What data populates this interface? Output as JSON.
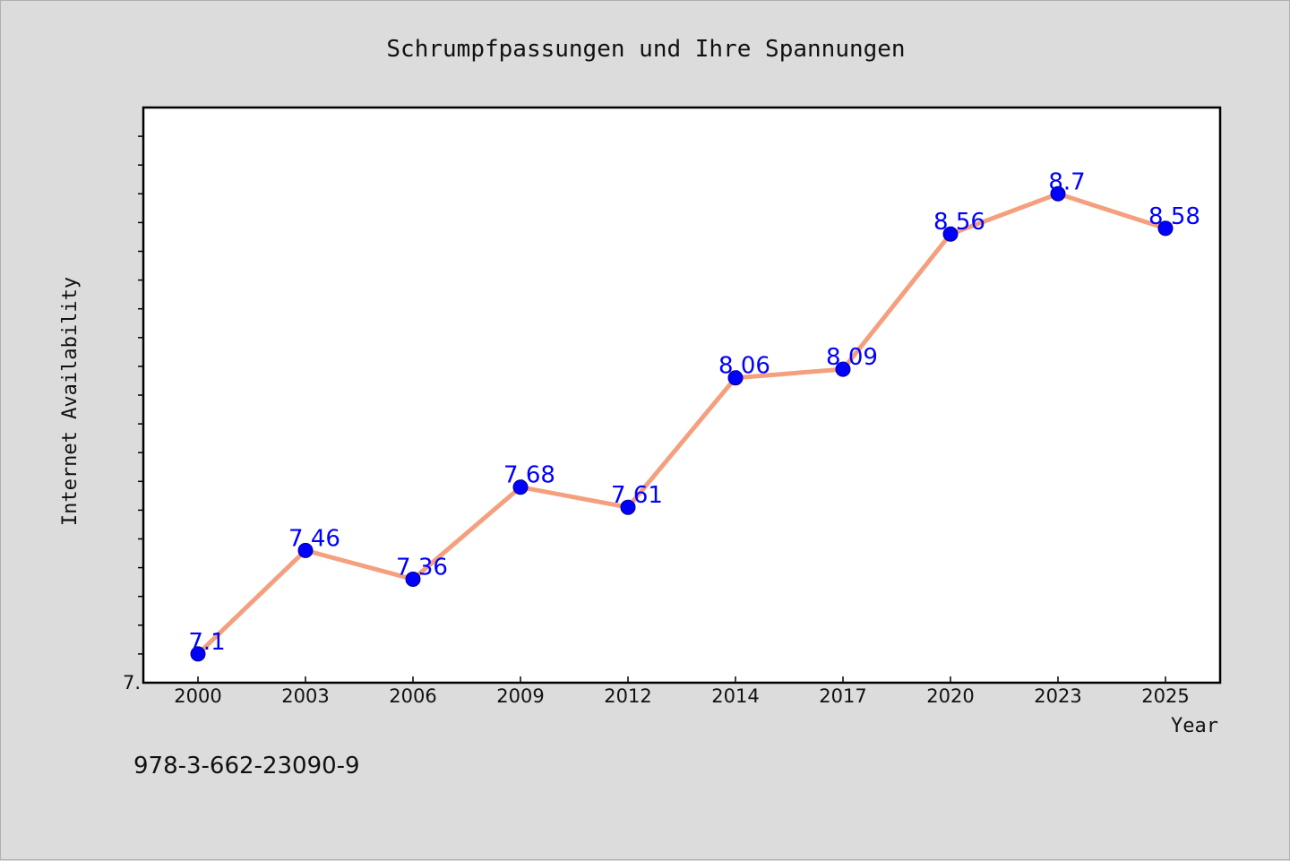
{
  "chart_data": {
    "type": "line",
    "title": "Schrumpfpassungen und Ihre Spannungen",
    "xlabel": "Year",
    "ylabel": "Internet Availability",
    "categories": [
      "2000",
      "2003",
      "2006",
      "2009",
      "2012",
      "2014",
      "2017",
      "2020",
      "2023",
      "2025"
    ],
    "series": [
      {
        "values": [
          7.1,
          7.46,
          7.36,
          7.68,
          7.61,
          8.06,
          8.09,
          8.56,
          8.7,
          8.58
        ],
        "labels": [
          "7.1",
          "7.46",
          "7.36",
          "7.68",
          "7.61",
          "8.06",
          "8.09",
          "8.56",
          "8.7",
          "8.58"
        ]
      }
    ],
    "ylim": [
      7.0,
      9.0
    ],
    "y_tick_labels": [
      {
        "value": 7.0,
        "text": "7."
      }
    ],
    "grid": false,
    "colors": {
      "line": "#f4a07e",
      "marker": "#0000ff",
      "data_label": "#0000ff",
      "background": "#dcdcdc",
      "plot_background": "#ffffff"
    }
  },
  "footnote": "978-3-662-23090-9"
}
